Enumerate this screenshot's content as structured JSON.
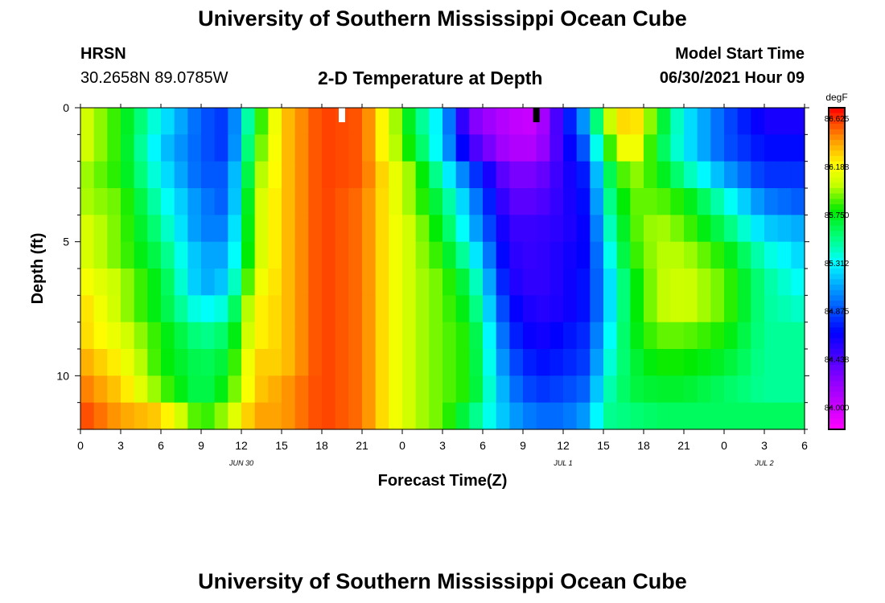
{
  "header": {
    "title": "University of Southern Mississippi Ocean Cube",
    "station": "HRSN",
    "coordinates": "30.2658N  89.0785W",
    "subtitle": "2-D Temperature at Depth",
    "model_start_label": "Model Start Time",
    "model_start_value": "06/30/2021 Hour 09"
  },
  "footer": {
    "title": "University of Southern Mississippi Ocean Cube"
  },
  "chart_data": {
    "type": "heatmap",
    "title": "2-D Temperature at Depth",
    "xlabel": "Forecast Time(Z)",
    "ylabel": "Depth (ft)",
    "xlim": [
      0,
      54
    ],
    "ylim": [
      0,
      12
    ],
    "x_tick_labels": [
      "0",
      "3",
      "6",
      "9",
      "12",
      "15",
      "18",
      "21",
      "0",
      "3",
      "6",
      "9",
      "12",
      "15",
      "18",
      "21",
      "0",
      "3",
      "6"
    ],
    "y_tick_labels": [
      "0",
      "5",
      "10"
    ],
    "y_tick_values": [
      0,
      5,
      10
    ],
    "date_labels": [
      {
        "text": "JUN 30",
        "hour": 12
      },
      {
        "text": "JUL 1",
        "hour": 36
      },
      {
        "text": "JUL 2",
        "hour": 51
      }
    ],
    "markers": [
      {
        "hour": 19.5,
        "color": "#ffffff"
      },
      {
        "hour": 34,
        "color": "#000000"
      }
    ],
    "colorbar": {
      "unit": "degF",
      "min": 83.8,
      "max": 86.72,
      "tick_labels": [
        "86.625",
        "86.188",
        "85.750",
        "85.312",
        "84.875",
        "84.438",
        "84.000"
      ],
      "tick_values": [
        86.625,
        86.188,
        85.75,
        85.312,
        84.875,
        84.438,
        84.0
      ]
    },
    "grid_rows": 12,
    "grid_hours": 54,
    "temperature_profiles": [
      {
        "hour": 0,
        "values": [
          86.1,
          86.1,
          86.0,
          86.0,
          86.1,
          86.1,
          86.2,
          86.3,
          86.3,
          86.4,
          86.5,
          86.6
        ]
      },
      {
        "hour": 3,
        "values": [
          85.8,
          85.8,
          85.8,
          85.9,
          85.9,
          85.9,
          86.0,
          86.0,
          86.1,
          86.2,
          86.3,
          86.4
        ]
      },
      {
        "hour": 6,
        "values": [
          85.3,
          85.2,
          85.3,
          85.4,
          85.5,
          85.6,
          85.7,
          85.7,
          85.8,
          85.8,
          85.9,
          86.3
        ]
      },
      {
        "hour": 9,
        "values": [
          84.9,
          84.9,
          84.9,
          85.0,
          85.0,
          85.1,
          85.1,
          85.3,
          85.5,
          85.6,
          85.6,
          85.8
        ]
      },
      {
        "hour": 11,
        "values": [
          84.8,
          84.8,
          84.9,
          84.9,
          85.0,
          85.1,
          85.2,
          85.4,
          85.6,
          85.7,
          85.8,
          86.0
        ]
      },
      {
        "hour": 13,
        "values": [
          85.7,
          85.8,
          85.9,
          86.0,
          86.0,
          86.0,
          86.1,
          86.2,
          86.2,
          86.3,
          86.3,
          86.4
        ]
      },
      {
        "hour": 15,
        "values": [
          86.3,
          86.3,
          86.3,
          86.3,
          86.3,
          86.3,
          86.3,
          86.3,
          86.3,
          86.3,
          86.4,
          86.4
        ]
      },
      {
        "hour": 18,
        "values": [
          86.6,
          86.6,
          86.6,
          86.6,
          86.6,
          86.6,
          86.6,
          86.6,
          86.6,
          86.6,
          86.6,
          86.6
        ]
      },
      {
        "hour": 21,
        "values": [
          86.55,
          86.55,
          86.55,
          86.5,
          86.5,
          86.5,
          86.5,
          86.5,
          86.5,
          86.5,
          86.5,
          86.5
        ]
      },
      {
        "hour": 23,
        "values": [
          86.1,
          86.1,
          86.2,
          86.2,
          86.2,
          86.2,
          86.2,
          86.2,
          86.2,
          86.2,
          86.2,
          86.2
        ]
      },
      {
        "hour": 25,
        "values": [
          85.6,
          85.7,
          85.9,
          85.9,
          86.0,
          86.0,
          86.0,
          86.0,
          86.0,
          86.0,
          86.0,
          86.0
        ]
      },
      {
        "hour": 27,
        "values": [
          85.2,
          85.2,
          85.4,
          85.6,
          85.7,
          85.8,
          85.9,
          85.9,
          85.9,
          85.9,
          85.9,
          85.9
        ]
      },
      {
        "hour": 29,
        "values": [
          84.3,
          84.5,
          84.9,
          85.1,
          85.2,
          85.4,
          85.6,
          85.7,
          85.8,
          85.8,
          85.8,
          85.6
        ]
      },
      {
        "hour": 32,
        "values": [
          84.05,
          84.1,
          84.3,
          84.4,
          84.5,
          84.55,
          84.6,
          84.7,
          84.8,
          84.9,
          85.0,
          85.1
        ]
      },
      {
        "hour": 34,
        "values": [
          84.0,
          84.1,
          84.3,
          84.4,
          84.5,
          84.5,
          84.5,
          84.55,
          84.6,
          84.7,
          84.8,
          84.95
        ]
      },
      {
        "hour": 36,
        "values": [
          84.6,
          84.55,
          84.55,
          84.55,
          84.55,
          84.6,
          84.6,
          84.6,
          84.7,
          84.75,
          84.85,
          84.95
        ]
      },
      {
        "hour": 38,
        "values": [
          85.2,
          85.0,
          84.8,
          84.75,
          84.7,
          84.7,
          84.75,
          84.75,
          84.8,
          84.85,
          84.95,
          85.1
        ]
      },
      {
        "hour": 39,
        "values": [
          85.9,
          85.7,
          85.5,
          85.4,
          85.3,
          85.2,
          85.1,
          85.1,
          85.2,
          85.3,
          85.4,
          85.5
        ]
      },
      {
        "hour": 41,
        "values": [
          86.4,
          86.3,
          86.0,
          85.9,
          85.85,
          85.8,
          85.7,
          85.7,
          85.7,
          85.65,
          85.65,
          85.55
        ]
      },
      {
        "hour": 43,
        "values": [
          85.8,
          85.7,
          85.8,
          85.9,
          86.0,
          86.0,
          86.0,
          86.0,
          85.9,
          85.8,
          85.7,
          85.6
        ]
      },
      {
        "hour": 45,
        "values": [
          85.3,
          85.3,
          85.5,
          85.8,
          85.9,
          86.0,
          86.05,
          86.05,
          85.9,
          85.8,
          85.7,
          85.6
        ]
      },
      {
        "hour": 48,
        "values": [
          84.9,
          84.9,
          85.1,
          85.4,
          85.6,
          85.8,
          85.9,
          85.9,
          85.8,
          85.7,
          85.6,
          85.6
        ]
      },
      {
        "hour": 51,
        "values": [
          84.6,
          84.7,
          84.8,
          85.0,
          85.2,
          85.4,
          85.5,
          85.5,
          85.5,
          85.5,
          85.5,
          85.6
        ]
      },
      {
        "hour": 54,
        "values": [
          84.6,
          84.7,
          84.8,
          84.9,
          85.1,
          85.2,
          85.3,
          85.4,
          85.5,
          85.5,
          85.5,
          85.6
        ]
      }
    ]
  }
}
